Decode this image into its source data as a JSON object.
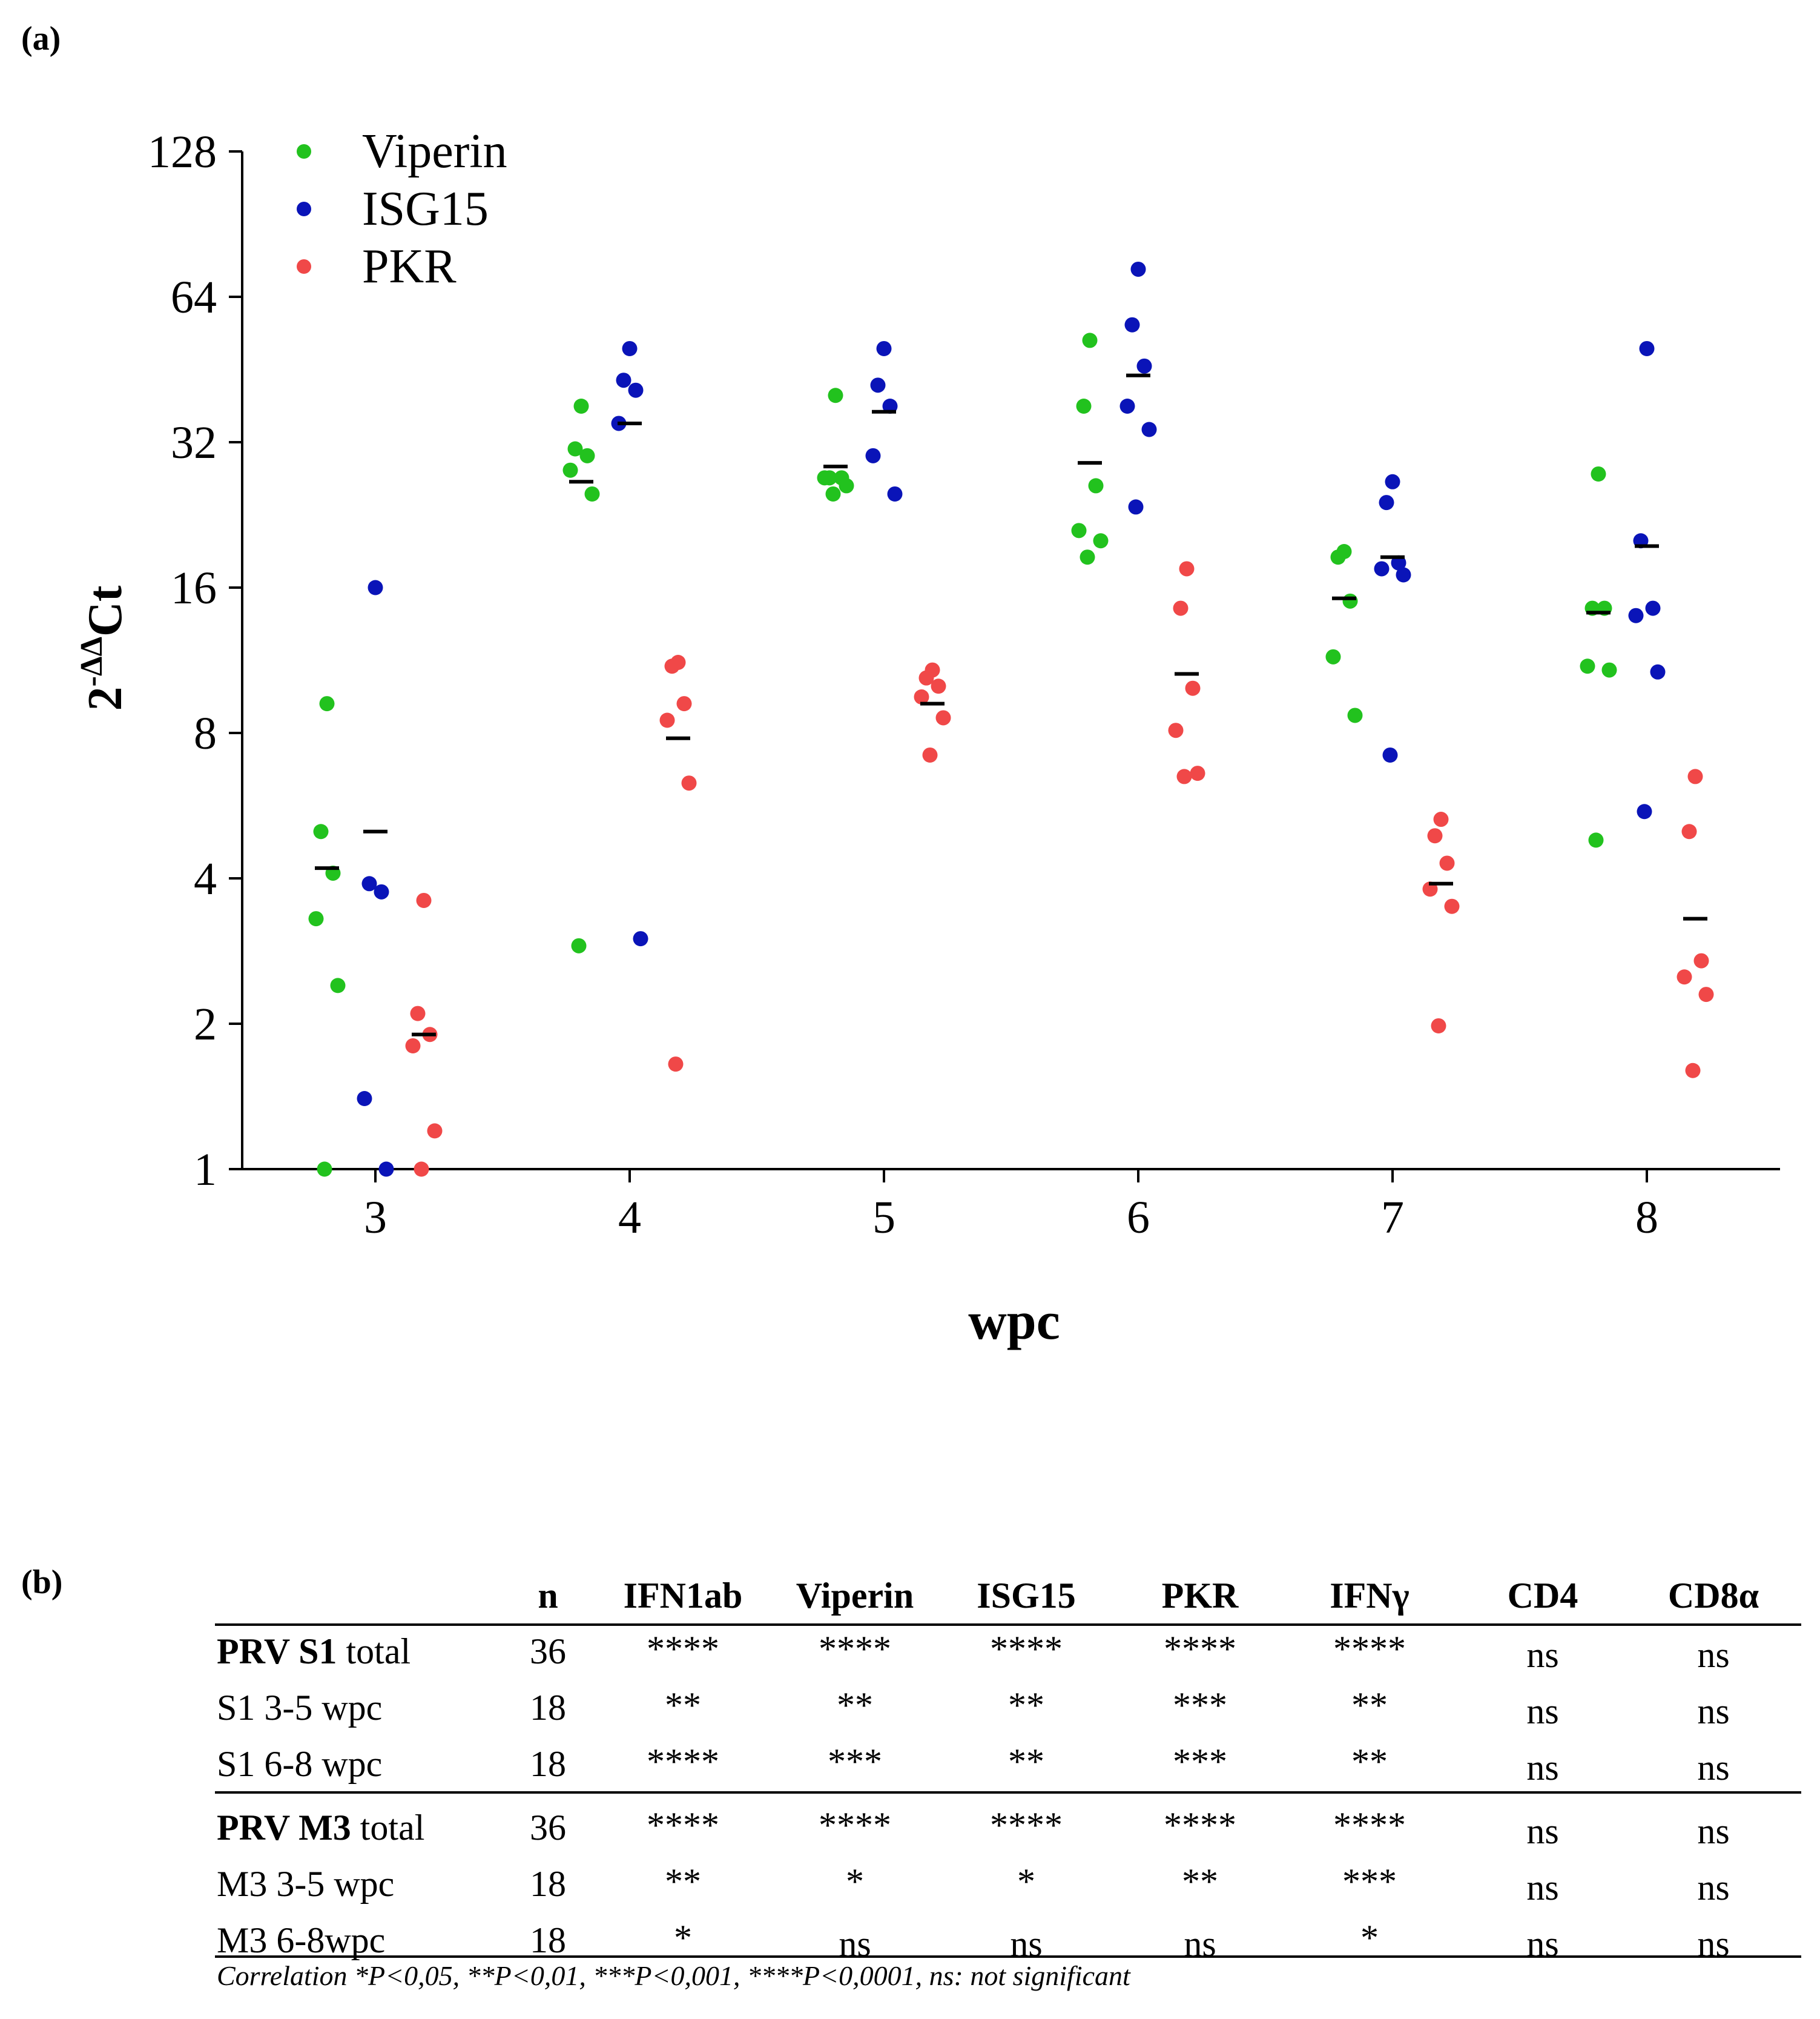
{
  "panels": {
    "a": "(a)",
    "b": "(b)"
  },
  "chart_data": {
    "type": "scatter",
    "title": "",
    "xlabel": "wpc",
    "ylabel": "2^-ΔΔCt",
    "ylabel_parts": {
      "base": "2",
      "sup": "-ΔΔ",
      "rest": "Ct"
    },
    "y_scale": "log2",
    "ylim": [
      1,
      128
    ],
    "yticks": [
      1,
      2,
      4,
      8,
      16,
      32,
      64,
      128
    ],
    "ytick_labels": [
      "1",
      "2",
      "4",
      "8",
      "16",
      "32",
      "64",
      "128"
    ],
    "categories": [
      "3",
      "4",
      "5",
      "6",
      "7",
      "8"
    ],
    "legend_position": "top-left",
    "colors": {
      "Viperin": "#22c21e",
      "ISG15": "#0a14b8",
      "PKR": "#f04848",
      "median": "#000000"
    },
    "series": [
      {
        "name": "Viperin",
        "color": "#22c21e",
        "points": [
          {
            "x": 3,
            "values": [
              9.2,
              5.0,
              4.1,
              3.3,
              2.4,
              1.0
            ],
            "median": 4.2
          },
          {
            "x": 4,
            "values": [
              38,
              31,
              30,
              28,
              25,
              2.9
            ],
            "median": 26.5
          },
          {
            "x": 5,
            "values": [
              40,
              27,
              27,
              27,
              26,
              25
            ],
            "median": 28.5
          },
          {
            "x": 6,
            "values": [
              52,
              38,
              26,
              21,
              20,
              18.5
            ],
            "median": 29
          },
          {
            "x": 7,
            "values": [
              19,
              18.5,
              15,
              11.5,
              8.7
            ],
            "median": 15.2
          },
          {
            "x": 8,
            "values": [
              27.5,
              14.5,
              14.5,
              11,
              10.8,
              4.8
            ],
            "median": 14.2
          }
        ]
      },
      {
        "name": "ISG15",
        "color": "#0a14b8",
        "points": [
          {
            "x": 3,
            "values": [
              16,
              3.9,
              3.75,
              1.4,
              1.0
            ],
            "median": 5.0
          },
          {
            "x": 4,
            "values": [
              50,
              43,
              41,
              35,
              3.0
            ],
            "median": 35
          },
          {
            "x": 5,
            "values": [
              50,
              42,
              38,
              30,
              25
            ],
            "median": 37
          },
          {
            "x": 6,
            "values": [
              73,
              56,
              46,
              38,
              34,
              23.5
            ],
            "median": 44
          },
          {
            "x": 7,
            "values": [
              26.5,
              24,
              18,
              17.5,
              17,
              7.2
            ],
            "median": 18.5
          },
          {
            "x": 8,
            "values": [
              50,
              20,
              14.5,
              14,
              10.7,
              5.5
            ],
            "median": 19.5
          }
        ]
      },
      {
        "name": "PKR",
        "color": "#f04848",
        "points": [
          {
            "x": 3,
            "values": [
              3.6,
              2.1,
              1.9,
              1.8,
              1.2,
              1.0
            ],
            "median": 1.9
          },
          {
            "x": 4,
            "values": [
              11.2,
              11,
              9.2,
              8.5,
              6.3,
              1.65
            ],
            "median": 7.8
          },
          {
            "x": 5,
            "values": [
              10.8,
              10.4,
              10.0,
              9.5,
              8.6,
              7.2
            ],
            "median": 9.2
          },
          {
            "x": 6,
            "values": [
              17.5,
              14.5,
              9.9,
              8.1,
              6.6,
              6.5
            ],
            "median": 10.6
          },
          {
            "x": 7,
            "values": [
              5.3,
              4.9,
              4.3,
              3.8,
              3.5,
              1.98
            ],
            "median": 3.9
          },
          {
            "x": 8,
            "values": [
              6.5,
              5.0,
              2.7,
              2.5,
              2.3,
              1.6
            ],
            "median": 3.3
          }
        ]
      }
    ]
  },
  "table": {
    "headers": [
      "",
      "n",
      "IFN1ab",
      "Viperin",
      "ISG15",
      "PKR",
      "IFNγ",
      "CD4",
      "CD8α"
    ],
    "rows": [
      {
        "label_bold": "PRV S1",
        "label_rest": " total",
        "n": "36",
        "cells": [
          "****",
          "****",
          "****",
          "****",
          "****",
          "ns",
          "ns"
        ]
      },
      {
        "label_bold": "",
        "label_rest": "S1 3-5 wpc",
        "n": "18",
        "cells": [
          "**",
          "**",
          "**",
          "***",
          "**",
          "ns",
          "ns"
        ]
      },
      {
        "label_bold": "",
        "label_rest": "S1 6-8 wpc",
        "n": "18",
        "cells": [
          "****",
          "***",
          "**",
          "***",
          "**",
          "ns",
          "ns"
        ]
      },
      {
        "label_bold": "PRV M3",
        "label_rest": " total",
        "n": "36",
        "cells": [
          "****",
          "****",
          "****",
          "****",
          "****",
          "ns",
          "ns"
        ]
      },
      {
        "label_bold": "",
        "label_rest": "M3 3-5 wpc",
        "n": "18",
        "cells": [
          "**",
          "*",
          "*",
          "**",
          "***",
          "ns",
          "ns"
        ]
      },
      {
        "label_bold": "",
        "label_rest": "M3 6-8wpc",
        "n": "18",
        "cells": [
          "*",
          "ns",
          "ns",
          "ns",
          "*",
          "ns",
          "ns"
        ]
      }
    ],
    "footnote": "Correlation *P<0,05, **P<0,01, ***P<0,001, ****P<0,0001, ns: not significant"
  }
}
